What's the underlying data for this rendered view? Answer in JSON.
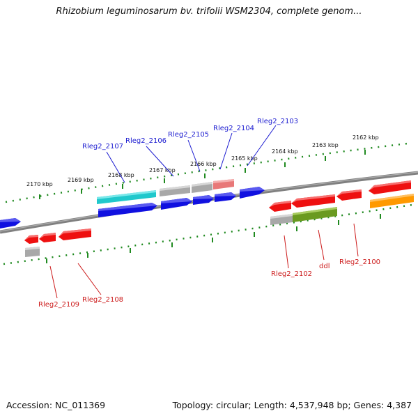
{
  "header": {
    "title": "Rhizobium leguminosarum bv. trifolii WSM2304, complete genom..."
  },
  "footer": {
    "accession": "Accession: NC_011369",
    "summary": "Topology: circular; Length: 4,537,948 bp; Genes: 4,387"
  },
  "scale_labels": [
    "2170 kbp",
    "2169 kbp",
    "2168 kbp",
    "2167 kbp",
    "2166 kbp",
    "2165 kbp",
    "2164 kbp",
    "2163 kbp",
    "2162 kbp"
  ],
  "gene_labels_top": [
    "Rleg2_2107",
    "Rleg2_2106",
    "Rleg2_2105",
    "Rleg2_2104",
    "Rleg2_2103"
  ],
  "gene_labels_bottom": [
    "Rleg2_2109",
    "Rleg2_2108",
    "Rleg2_2102",
    "ddl",
    "Rleg2_2100"
  ],
  "colors": {
    "forward_cds": "#1010e0",
    "reverse_cds": "#ee1010",
    "cyan_feature": "#20c8cc",
    "gray_feature": "#a8a8a8",
    "pink_feature": "#e87878",
    "green_feature": "#6a9a20",
    "orange_feature": "#ff9900",
    "backbone": "#808080",
    "tick": "#208a20",
    "label_blue": "#1a1ad0",
    "label_red": "#cc1a1a"
  }
}
